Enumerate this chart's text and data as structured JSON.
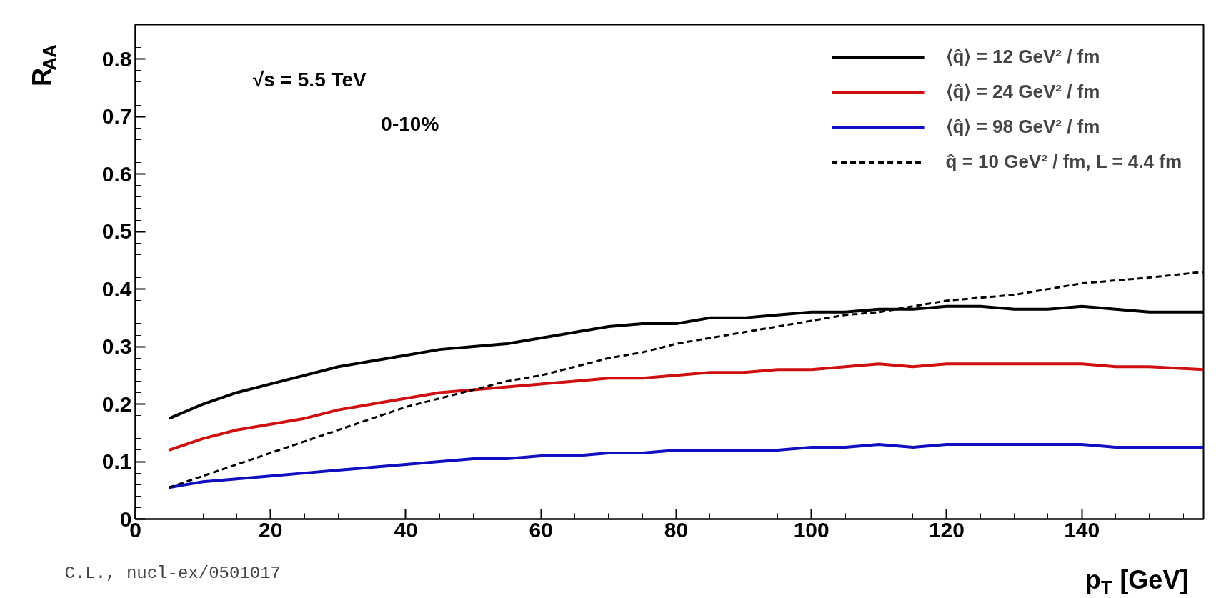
{
  "chart_data": {
    "type": "line",
    "xlabel": "p$_{T}$ [GeV]",
    "ylabel": "R$_{AA}$",
    "x": [
      5,
      10,
      15,
      20,
      25,
      30,
      35,
      40,
      45,
      50,
      55,
      60,
      65,
      70,
      75,
      80,
      85,
      90,
      95,
      100,
      105,
      110,
      115,
      120,
      125,
      130,
      135,
      140,
      145,
      150,
      158
    ],
    "series": [
      {
        "name": "⟨q̂⟩ = 12 GeV² / fm",
        "color": "#000000",
        "line_style": "solid",
        "values": [
          0.175,
          0.2,
          0.22,
          0.235,
          0.25,
          0.265,
          0.275,
          0.285,
          0.295,
          0.3,
          0.305,
          0.315,
          0.325,
          0.335,
          0.34,
          0.34,
          0.35,
          0.35,
          0.355,
          0.36,
          0.36,
          0.365,
          0.365,
          0.37,
          0.37,
          0.365,
          0.365,
          0.37,
          0.365,
          0.36,
          0.36
        ]
      },
      {
        "name": "⟨q̂⟩ = 24 GeV² / fm",
        "color": "#d01010",
        "line_style": "solid",
        "values": [
          0.12,
          0.14,
          0.155,
          0.165,
          0.175,
          0.19,
          0.2,
          0.21,
          0.22,
          0.225,
          0.23,
          0.235,
          0.24,
          0.245,
          0.245,
          0.25,
          0.255,
          0.255,
          0.26,
          0.26,
          0.265,
          0.27,
          0.265,
          0.27,
          0.27,
          0.27,
          0.27,
          0.27,
          0.265,
          0.265,
          0.26
        ]
      },
      {
        "name": "⟨q̂⟩ = 98 GeV² / fm",
        "color": "#1010c0",
        "line_style": "solid",
        "values": [
          0.055,
          0.065,
          0.07,
          0.075,
          0.08,
          0.085,
          0.09,
          0.095,
          0.1,
          0.105,
          0.105,
          0.11,
          0.11,
          0.115,
          0.115,
          0.12,
          0.12,
          0.12,
          0.12,
          0.125,
          0.125,
          0.13,
          0.125,
          0.13,
          0.13,
          0.13,
          0.13,
          0.13,
          0.125,
          0.125,
          0.125
        ]
      },
      {
        "name": "q̂ = 10 GeV² / fm, L = 4.4 fm",
        "color": "#000000",
        "line_style": "dashed",
        "values": [
          0.055,
          0.075,
          0.095,
          0.115,
          0.135,
          0.155,
          0.175,
          0.195,
          0.21,
          0.225,
          0.24,
          0.25,
          0.265,
          0.28,
          0.29,
          0.305,
          0.315,
          0.325,
          0.335,
          0.345,
          0.355,
          0.36,
          0.37,
          0.38,
          0.385,
          0.39,
          0.4,
          0.41,
          0.415,
          0.42,
          0.43
        ]
      }
    ],
    "xlim": [
      0,
      158
    ],
    "ylim": [
      0,
      0.86
    ],
    "xticks": [
      0,
      20,
      40,
      60,
      80,
      100,
      120,
      140
    ],
    "yticks": [
      0,
      0.1,
      0.2,
      0.3,
      0.4,
      0.5,
      0.6,
      0.7,
      0.8
    ],
    "grid": false,
    "legend": "top right",
    "marker": "none",
    "annotations": [
      "√s = 5.5 TeV",
      "0-10%",
      "C.L., nucl-ex/0501017"
    ]
  }
}
